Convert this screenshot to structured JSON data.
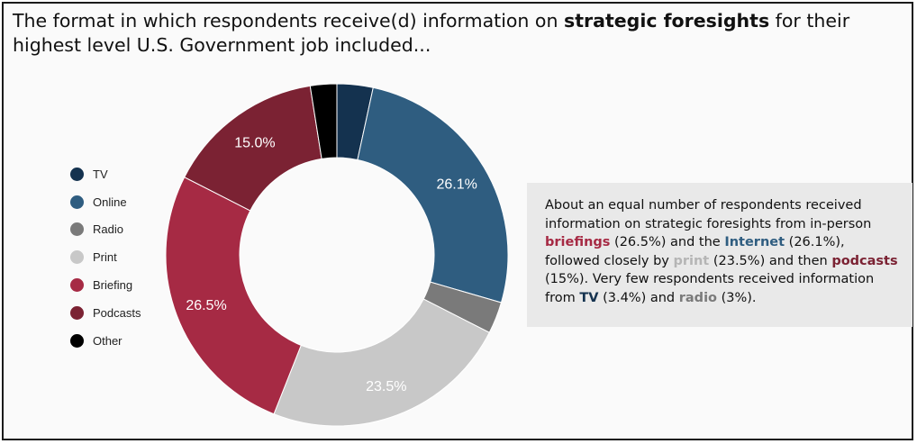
{
  "title": {
    "before": "The format in which respondents receive(d) information on ",
    "bold": "strategic foresights",
    "after": " for their highest level U.S. Government job included..."
  },
  "chart_data": {
    "type": "pie",
    "variant": "donut",
    "categories": [
      "TV",
      "Online",
      "Radio",
      "Print",
      "Briefing",
      "Podcasts",
      "Other"
    ],
    "values": [
      3.4,
      26.1,
      3.0,
      23.5,
      26.5,
      15.0,
      2.5
    ],
    "colors": [
      "#14324f",
      "#2f5d80",
      "#7a7a7a",
      "#c8c8c8",
      "#a62a44",
      "#7b2233",
      "#000000"
    ],
    "slice_labels": [
      "",
      "26.1%",
      "",
      "23.5%",
      "26.5%",
      "15.0%",
      ""
    ],
    "legend_position": "left"
  },
  "callout": {
    "t1": "About an equal number of respondents received information on strategic foresights from in-person ",
    "k_briefings": "briefings",
    "t2": " (26.5%) and the ",
    "k_internet": "Internet",
    "t3": " (26.1%), followed closely by ",
    "k_print": "print",
    "t4": " (23.5%) and then ",
    "k_podcasts": "podcasts",
    "t5": " (15%). Very few respondents received information from ",
    "k_tv": "TV",
    "t6": " (3.4%) and ",
    "k_radio": "radio",
    "t7": " (3%).",
    "colors": {
      "briefings": "#a62a44",
      "internet": "#2f5d80",
      "print": "#b5b5b5",
      "podcasts": "#7b2233",
      "tv": "#14324f",
      "radio": "#7a7a7a"
    }
  }
}
